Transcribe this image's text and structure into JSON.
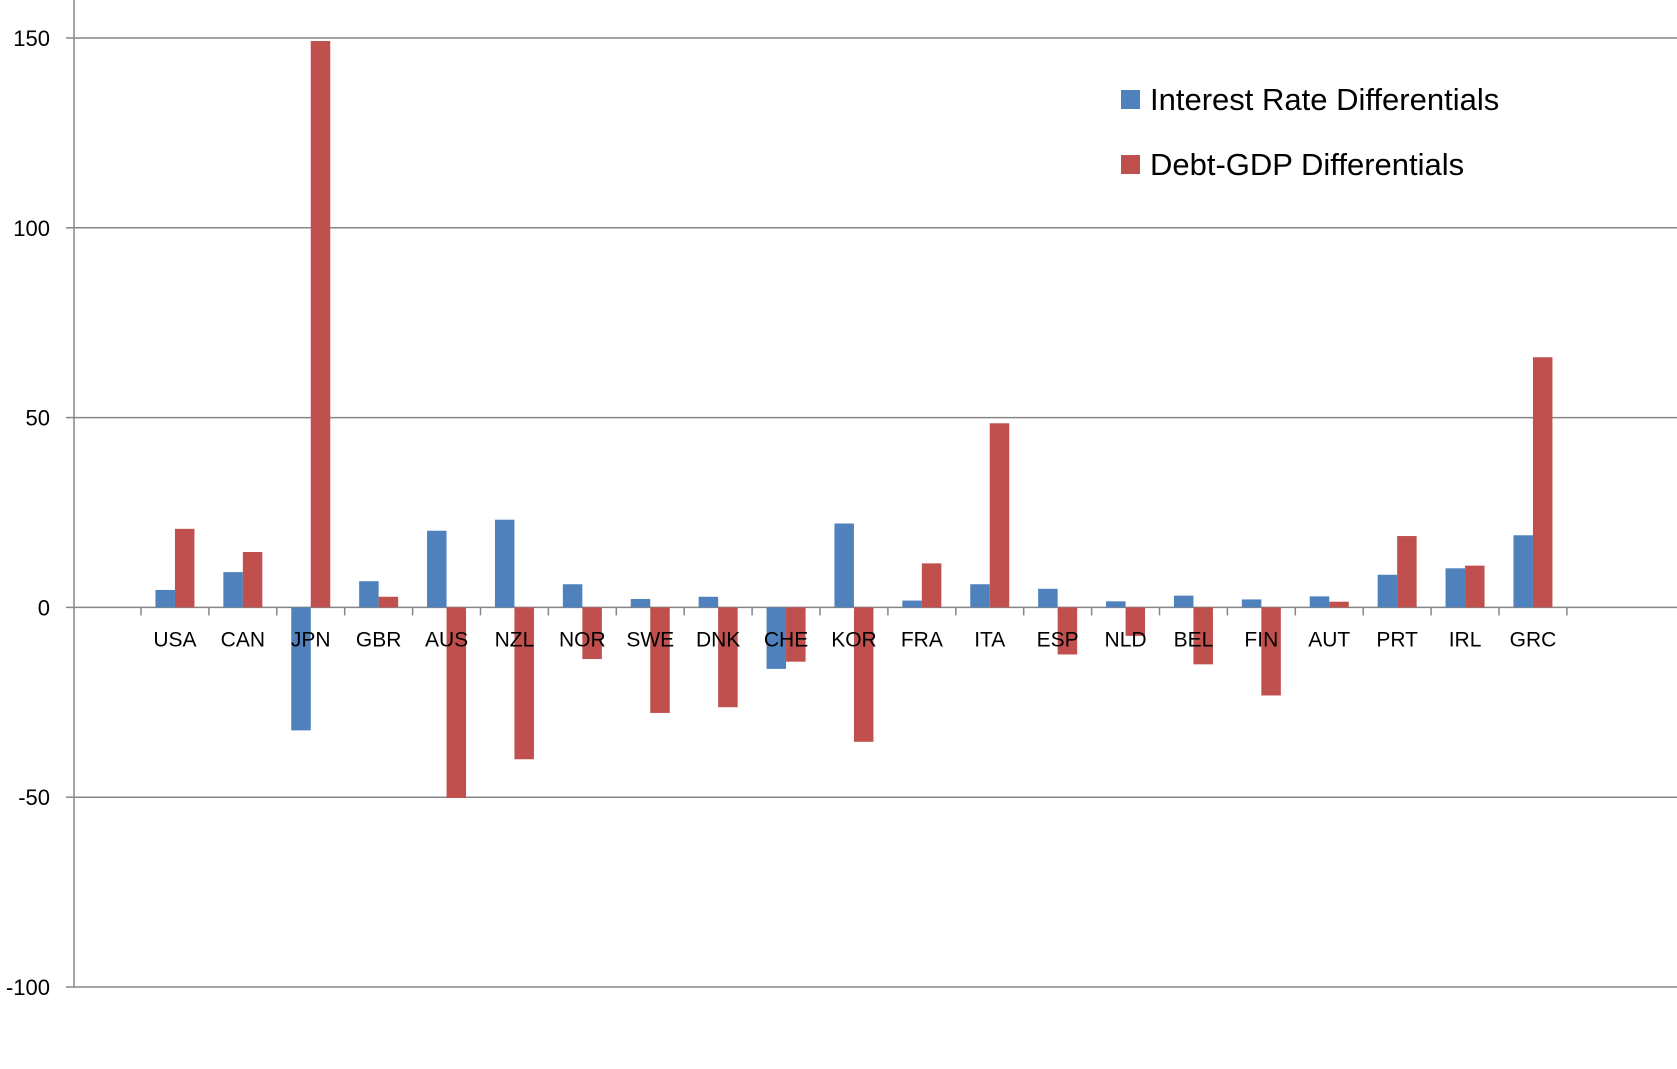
{
  "chart_data": {
    "type": "bar",
    "categories": [
      "USA",
      "CAN",
      "JPN",
      "GBR",
      "AUS",
      "NZL",
      "NOR",
      "SWE",
      "DNK",
      "CHE",
      "KOR",
      "FRA",
      "ITA",
      "ESP",
      "NLD",
      "BEL",
      "FIN",
      "AUT",
      "PRT",
      "IRL",
      "GRC"
    ],
    "series": [
      {
        "name": "Interest Rate Differentials",
        "color": "#4F81BD",
        "values": [
          4.6,
          9.3,
          -32.4,
          6.9,
          20.2,
          23.1,
          6.1,
          2.2,
          2.8,
          -16.2,
          22.1,
          1.8,
          6.1,
          4.9,
          1.6,
          3.1,
          2.1,
          2.9,
          8.6,
          10.3,
          19.0
        ]
      },
      {
        "name": "Debt-GDP Differentials",
        "color": "#C0504D",
        "values": [
          20.7,
          14.6,
          149.2,
          2.8,
          -50.2,
          -40.0,
          -13.6,
          -27.8,
          -26.3,
          -14.3,
          -35.4,
          11.6,
          48.5,
          -12.4,
          -7.5,
          -15.0,
          -23.2,
          1.5,
          18.8,
          11.0,
          65.9
        ]
      }
    ],
    "title": "",
    "xlabel": "",
    "ylabel": "",
    "ylim": [
      -100,
      150
    ],
    "yticks": [
      150,
      100,
      50,
      0,
      -50,
      -100
    ],
    "grid": true,
    "legend_position": "top-right"
  }
}
